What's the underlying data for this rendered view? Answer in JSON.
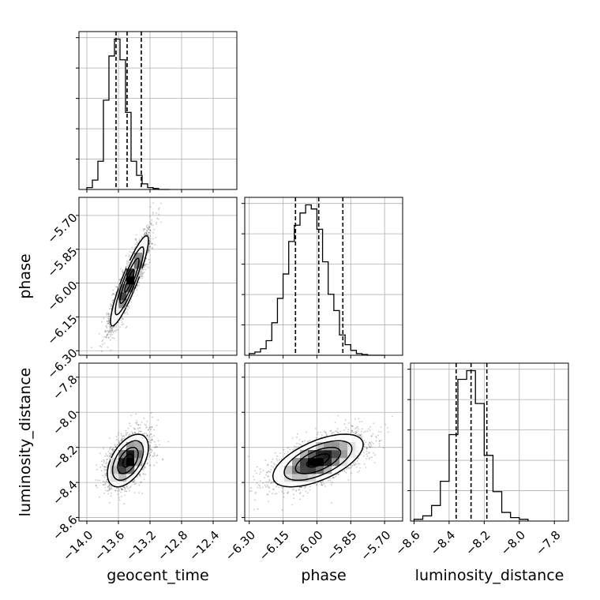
{
  "chart_data": {
    "type": "corner",
    "parameters": [
      "geocent_time",
      "phase",
      "luminosity_distance"
    ],
    "grid": true,
    "axes": {
      "geocent_time": {
        "range": [
          -14.1,
          -12.1
        ],
        "ticks": [
          -14.0,
          -13.6,
          -13.2,
          -12.8,
          -12.4
        ],
        "tick_labels": [
          "−14.0",
          "−13.6",
          "−13.2",
          "−12.8",
          "−12.4"
        ]
      },
      "phase": {
        "range": [
          -6.32,
          -5.62
        ],
        "ticks": [
          -6.3,
          -6.15,
          -6.0,
          -5.85,
          -5.7
        ],
        "tick_labels": [
          "−6.30",
          "−6.15",
          "−6.00",
          "−5.85",
          "−5.70"
        ]
      },
      "luminosity_distance": {
        "range": [
          -8.62,
          -7.72
        ],
        "ticks": [
          -8.6,
          -8.4,
          -8.2,
          -8.0,
          -7.8
        ],
        "tick_labels": [
          "−8.6",
          "−8.4",
          "−8.2",
          "−8.0",
          "−7.8"
        ]
      }
    },
    "histograms": {
      "geocent_time": {
        "bin_edges": [
          -14.0,
          -13.93,
          -13.86,
          -13.79,
          -13.72,
          -13.65,
          -13.58,
          -13.51,
          -13.44,
          -13.37,
          -13.3,
          -13.23,
          -13.16,
          -13.09,
          -13.02,
          -12.95
        ],
        "counts": [
          2,
          10,
          30,
          95,
          142,
          160,
          138,
          82,
          30,
          15,
          6,
          2,
          1,
          0,
          0
        ],
        "quantiles": [
          -13.63,
          -13.49,
          -13.31
        ]
      },
      "phase": {
        "bin_edges": [
          -6.3,
          -6.275,
          -6.25,
          -6.225,
          -6.2,
          -6.175,
          -6.15,
          -6.125,
          -6.1,
          -6.075,
          -6.05,
          -6.025,
          -6.0,
          -5.975,
          -5.95,
          -5.925,
          -5.9,
          -5.875,
          -5.85,
          -5.825,
          -5.8,
          -5.775,
          -5.75,
          -5.725,
          -5.7
        ],
        "counts": [
          2,
          4,
          8,
          18,
          40,
          70,
          100,
          140,
          160,
          175,
          185,
          180,
          155,
          115,
          75,
          55,
          25,
          13,
          6,
          2,
          1,
          0,
          0,
          0
        ],
        "quantiles": [
          -6.095,
          -5.992,
          -5.885
        ]
      },
      "luminosity_distance": {
        "bin_edges": [
          -8.6,
          -8.55,
          -8.5,
          -8.45,
          -8.4,
          -8.35,
          -8.3,
          -8.25,
          -8.2,
          -8.15,
          -8.1,
          -8.05,
          -8.0,
          -7.95
        ],
        "counts": [
          1,
          3,
          9,
          23,
          50,
          82,
          87,
          68,
          38,
          17,
          5,
          2,
          1
        ],
        "quantiles": [
          -8.36,
          -8.275,
          -8.185
        ]
      }
    },
    "scatter_pairs": [
      {
        "x": "geocent_time",
        "y": "phase",
        "mean": [
          -13.46,
          -5.99
        ],
        "sd": [
          0.12,
          0.1
        ],
        "corr": 0.9,
        "contour_levels": [
          0.5,
          1.0,
          1.5,
          2.0
        ]
      },
      {
        "x": "geocent_time",
        "y": "luminosity_distance",
        "mean": [
          -13.48,
          -8.275
        ],
        "sd": [
          0.13,
          0.075
        ],
        "corr": 0.5,
        "contour_levels": [
          0.5,
          1.0,
          1.5,
          2.0
        ]
      },
      {
        "x": "phase",
        "y": "luminosity_distance",
        "mean": [
          -5.995,
          -8.275
        ],
        "sd": [
          0.1,
          0.075
        ],
        "corr": 0.6,
        "contour_levels": [
          0.5,
          1.0,
          1.5,
          2.0
        ]
      }
    ]
  }
}
